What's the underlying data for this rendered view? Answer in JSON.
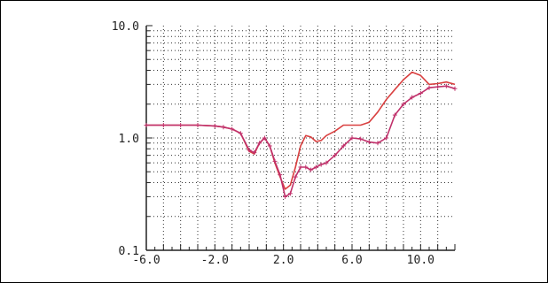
{
  "chart_data": {
    "type": "line",
    "title": "",
    "xlabel": "",
    "ylabel": "",
    "yscale": "log",
    "xlim": [
      -6.0,
      12.0
    ],
    "ylim": [
      0.1,
      10.0
    ],
    "grid": true,
    "grid_style": "dotted",
    "x_ticks": [
      "-6.0",
      "-2.0",
      "2.0",
      "6.0",
      "10.0"
    ],
    "y_ticks": [
      "0.1",
      "1.0",
      "10.0"
    ],
    "series": [
      {
        "color": "#d94040",
        "marker": "none",
        "x": [
          -6.0,
          -5.0,
          -4.0,
          -3.0,
          -2.0,
          -1.5,
          -1.0,
          -0.5,
          0.0,
          0.3,
          0.6,
          0.9,
          1.2,
          1.5,
          1.8,
          2.1,
          2.4,
          2.7,
          3.0,
          3.3,
          3.6,
          3.9,
          4.2,
          4.5,
          5.0,
          5.5,
          6.0,
          6.5,
          7.0,
          7.5,
          8.0,
          8.5,
          9.0,
          9.5,
          10.0,
          10.5,
          11.0,
          11.5,
          12.0
        ],
        "values": [
          1.3,
          1.3,
          1.3,
          1.3,
          1.28,
          1.25,
          1.2,
          1.1,
          0.76,
          0.72,
          0.9,
          1.0,
          0.85,
          0.6,
          0.45,
          0.35,
          0.38,
          0.55,
          0.85,
          1.05,
          1.02,
          0.93,
          0.95,
          1.05,
          1.15,
          1.3,
          1.3,
          1.3,
          1.38,
          1.7,
          2.2,
          2.7,
          3.3,
          3.85,
          3.6,
          3.0,
          3.05,
          3.15,
          3.0
        ]
      },
      {
        "color": "#c0306a",
        "marker": "+",
        "x": [
          -6.0,
          -5.0,
          -4.0,
          -3.0,
          -2.0,
          -1.5,
          -1.0,
          -0.5,
          0.0,
          0.3,
          0.6,
          0.9,
          1.2,
          1.5,
          1.8,
          2.1,
          2.4,
          2.7,
          3.0,
          3.3,
          3.6,
          3.9,
          4.2,
          4.5,
          5.0,
          5.5,
          6.0,
          6.5,
          7.0,
          7.5,
          8.0,
          8.5,
          9.0,
          9.5,
          10.0,
          10.5,
          11.0,
          11.5,
          12.0
        ],
        "values": [
          1.3,
          1.3,
          1.3,
          1.3,
          1.28,
          1.25,
          1.2,
          1.1,
          0.78,
          0.74,
          0.9,
          1.0,
          0.85,
          0.62,
          0.47,
          0.3,
          0.32,
          0.45,
          0.55,
          0.55,
          0.52,
          0.55,
          0.58,
          0.6,
          0.7,
          0.85,
          1.0,
          0.98,
          0.92,
          0.9,
          1.0,
          1.6,
          2.0,
          2.3,
          2.5,
          2.8,
          2.85,
          2.9,
          2.75
        ]
      }
    ]
  }
}
